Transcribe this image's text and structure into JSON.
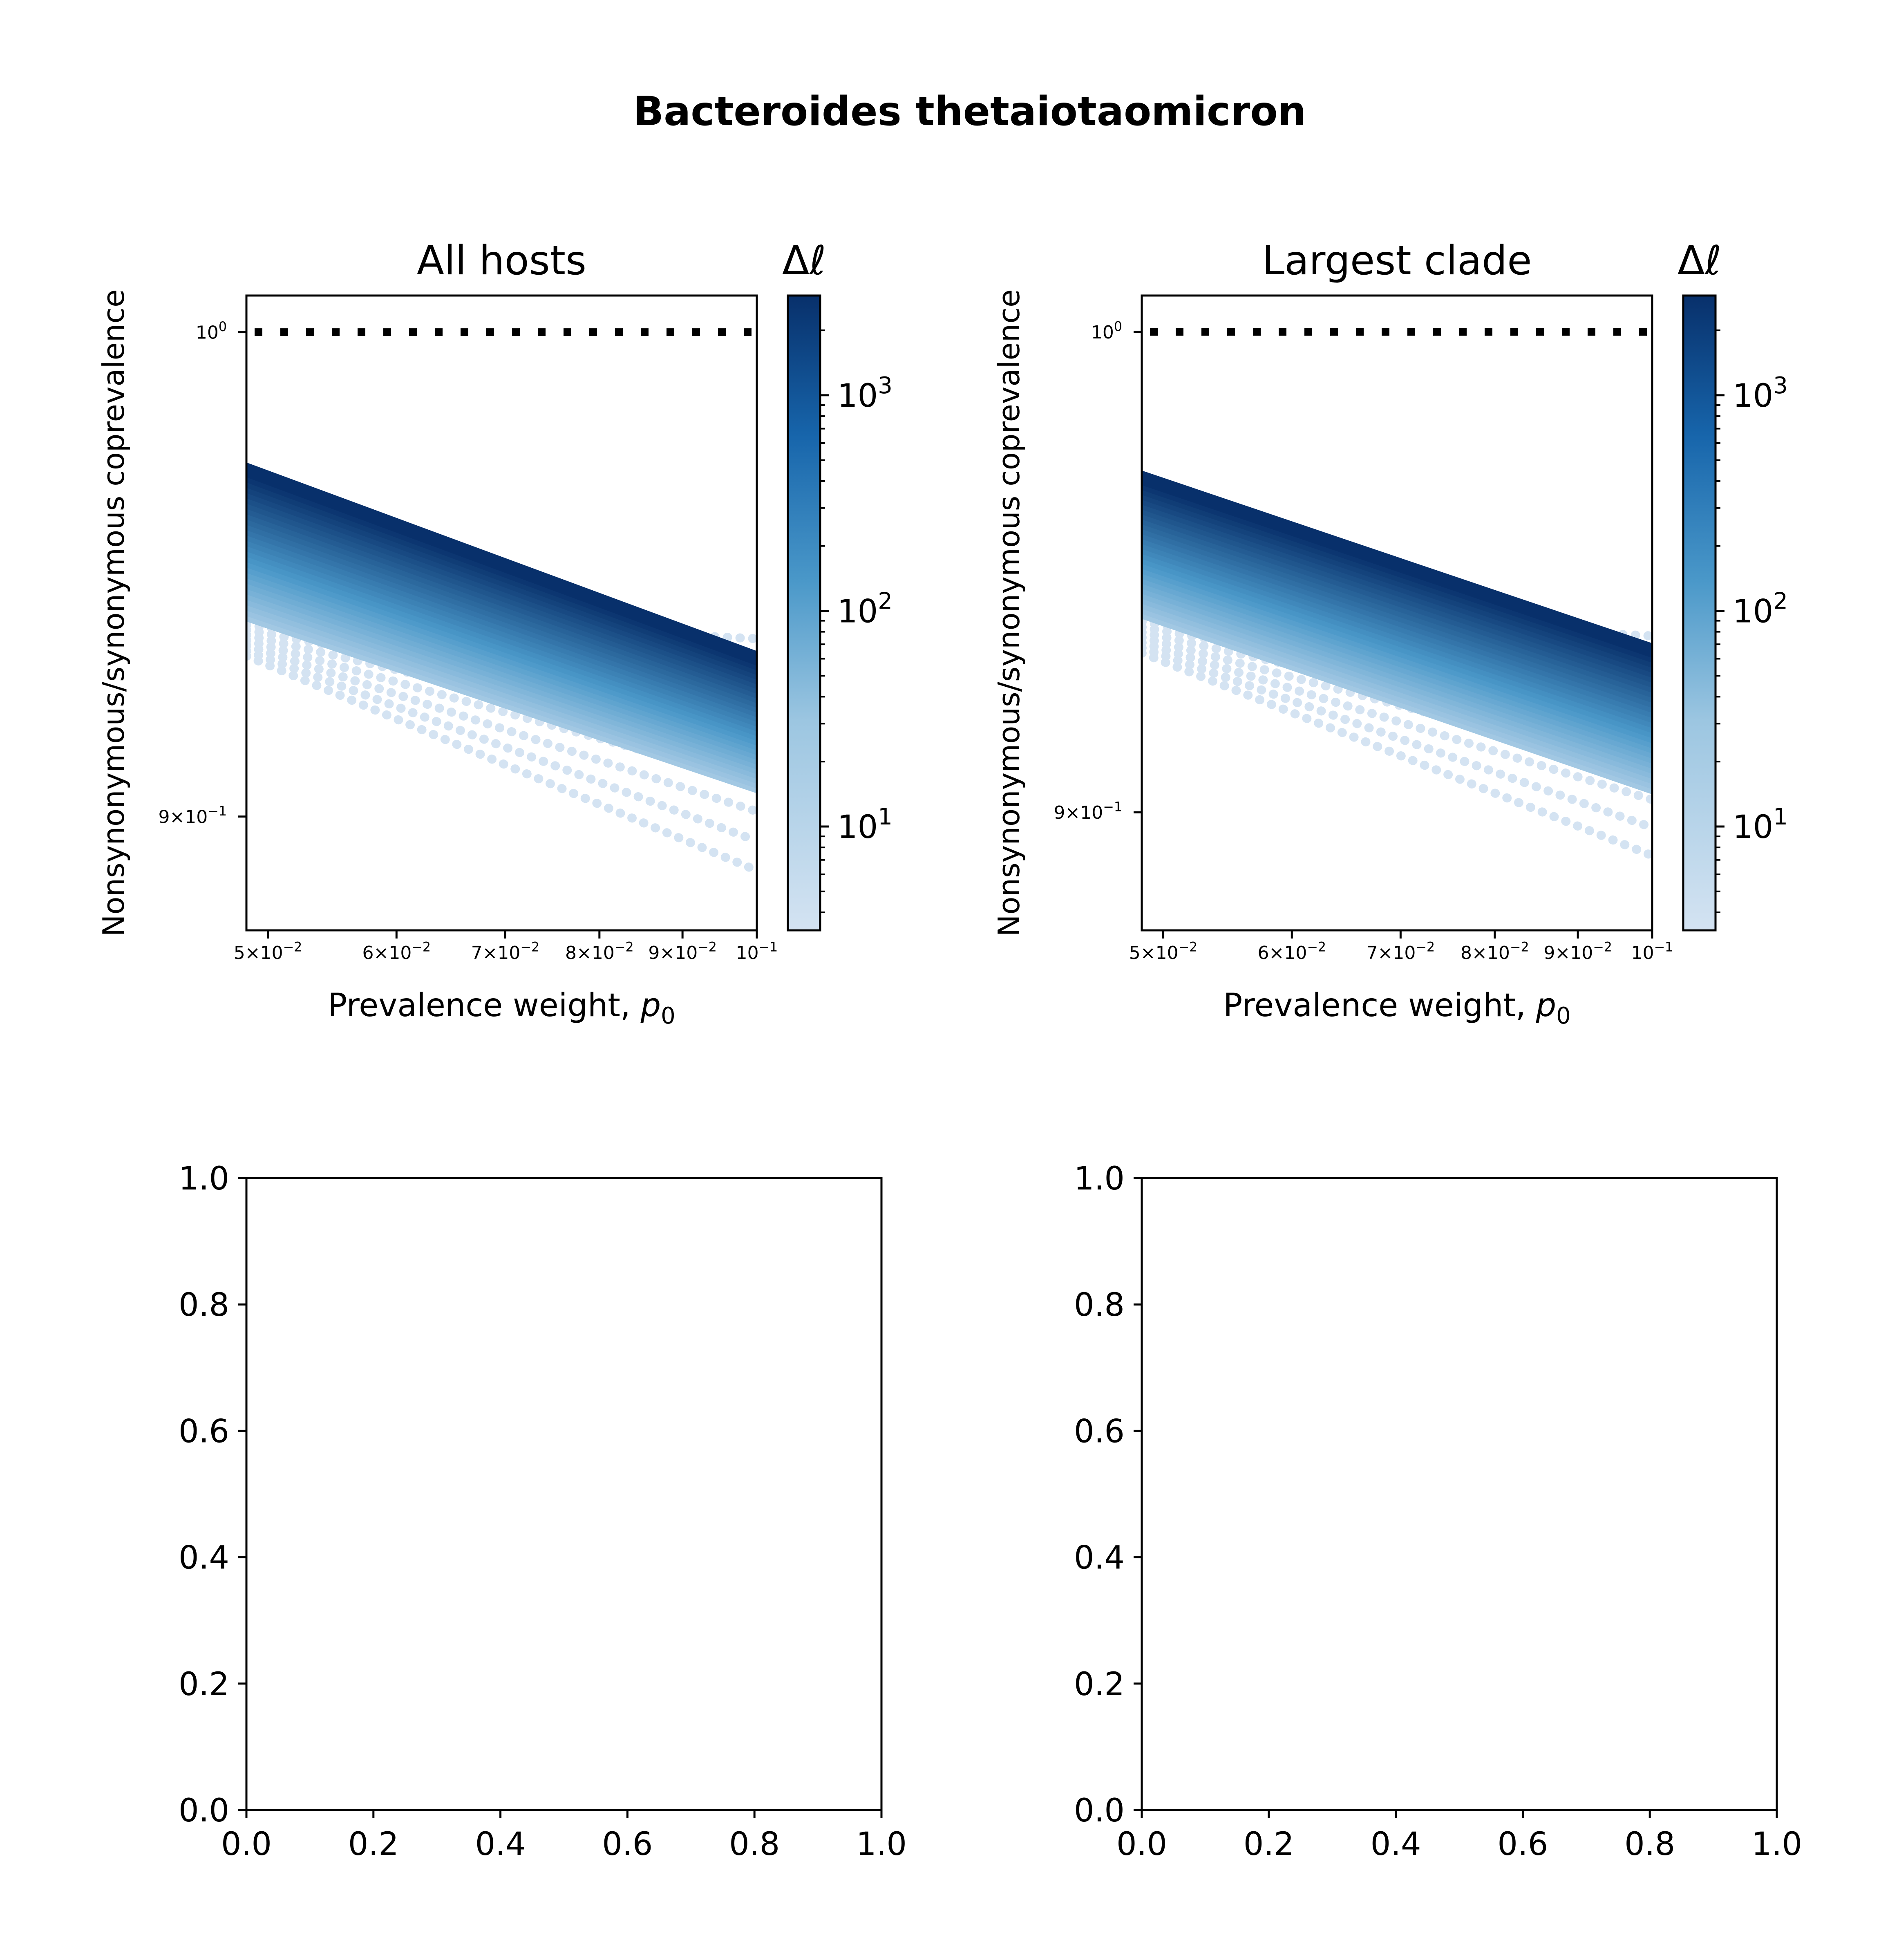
{
  "figure": {
    "suptitle": "Bacteroides thetaiotaomicron"
  },
  "colors": {
    "cmap_low": "#d4e3f2",
    "cmap_mid": "#4a98c9",
    "cmap_high": "#08306b",
    "dotted_line": "#000000",
    "axis": "#000000"
  },
  "chart_data": [
    {
      "type": "line",
      "title": "All hosts",
      "xlabel": "Prevalence weight, ",
      "xlabel_math": "p",
      "xlabel_sub": "0",
      "ylabel": "Nonsynonymous/synonymous coprevalence",
      "xscale": "log",
      "yscale": "log",
      "xlim": [
        0.0485,
        0.1
      ],
      "ylim": [
        0.878,
        1.008
      ],
      "xticks": [
        {
          "value": 0.05,
          "mant": "5×10",
          "exp": "−2"
        },
        {
          "value": 0.06,
          "mant": "6×10",
          "exp": "−2"
        },
        {
          "value": 0.07,
          "mant": "7×10",
          "exp": "−2"
        },
        {
          "value": 0.08,
          "mant": "8×10",
          "exp": "−2"
        },
        {
          "value": 0.09,
          "mant": "9×10",
          "exp": "−2"
        },
        {
          "value": 0.1,
          "mant": "10",
          "exp": "−1"
        }
      ],
      "yticks": [
        {
          "value": 1.0,
          "mant": "10",
          "exp": "0"
        },
        {
          "value": 0.9,
          "mant": "9×10",
          "exp": "−1"
        }
      ],
      "reference_line": {
        "y": 1.0,
        "style": "dotted"
      },
      "colorbar": {
        "label": "Δℓ",
        "scale": "log",
        "range": [
          3.3,
          2900
        ],
        "ticks": [
          {
            "value": 10,
            "mant": "10",
            "exp": "1"
          },
          {
            "value": 100,
            "mant": "10",
            "exp": "2"
          },
          {
            "value": 1000,
            "mant": "10",
            "exp": "3"
          }
        ]
      },
      "series_x": [
        0.0485,
        0.1
      ],
      "series_summary": {
        "upper_start": [
          0.0485,
          0.9705
        ],
        "upper_end": [
          0.1,
          0.9315
        ],
        "lower_start": [
          0.0485,
          0.9405
        ],
        "lower_end": [
          0.1,
          0.906
        ],
        "faint_lower_start": [
          0.0485,
          0.932
        ],
        "faint_lower_end": [
          0.1,
          0.8895
        ],
        "faint_upper_end": [
          0.1,
          0.9355
        ],
        "n_colored_series": 28,
        "n_faint_series": 9
      }
    },
    {
      "type": "line",
      "title": "Largest clade",
      "xlabel": "Prevalence weight, ",
      "xlabel_math": "p",
      "xlabel_sub": "0",
      "ylabel": "Nonsynonymous/synonymous coprevalence",
      "xscale": "log",
      "yscale": "log",
      "xlim": [
        0.0485,
        0.1
      ],
      "ylim": [
        0.877,
        1.008
      ],
      "xticks": [
        {
          "value": 0.05,
          "mant": "5×10",
          "exp": "−2"
        },
        {
          "value": 0.06,
          "mant": "6×10",
          "exp": "−2"
        },
        {
          "value": 0.07,
          "mant": "7×10",
          "exp": "−2"
        },
        {
          "value": 0.08,
          "mant": "8×10",
          "exp": "−2"
        },
        {
          "value": 0.09,
          "mant": "9×10",
          "exp": "−2"
        },
        {
          "value": 0.1,
          "mant": "10",
          "exp": "−1"
        }
      ],
      "yticks": [
        {
          "value": 1.0,
          "mant": "10",
          "exp": "0"
        },
        {
          "value": 0.9,
          "mant": "9×10",
          "exp": "−1"
        }
      ],
      "reference_line": {
        "y": 1.0,
        "style": "dotted"
      },
      "colorbar": {
        "label": "Δℓ",
        "scale": "log",
        "range": [
          3.3,
          2900
        ],
        "ticks": [
          {
            "value": 10,
            "mant": "10",
            "exp": "1"
          },
          {
            "value": 100,
            "mant": "10",
            "exp": "2"
          },
          {
            "value": 1000,
            "mant": "10",
            "exp": "3"
          }
        ]
      },
      "series_x": [
        0.0485,
        0.1
      ],
      "series_summary": {
        "upper_start": [
          0.0485,
          0.9685
        ],
        "upper_end": [
          0.1,
          0.9325
        ],
        "lower_start": [
          0.0485,
          0.9405
        ],
        "lower_end": [
          0.1,
          0.905
        ],
        "faint_lower_start": [
          0.0485,
          0.932
        ],
        "faint_lower_end": [
          0.1,
          0.8915
        ],
        "faint_upper_end": [
          0.1,
          0.9355
        ],
        "n_colored_series": 28,
        "n_faint_series": 9
      }
    },
    {
      "type": "line",
      "title": "",
      "xlim": [
        0,
        1
      ],
      "ylim": [
        0,
        1
      ],
      "xticks": [
        "0.0",
        "0.2",
        "0.4",
        "0.6",
        "0.8",
        "1.0"
      ],
      "yticks": [
        "0.0",
        "0.2",
        "0.4",
        "0.6",
        "0.8",
        "1.0"
      ]
    },
    {
      "type": "line",
      "title": "",
      "xlim": [
        0,
        1
      ],
      "ylim": [
        0,
        1
      ],
      "xticks": [
        "0.0",
        "0.2",
        "0.4",
        "0.6",
        "0.8",
        "1.0"
      ],
      "yticks": [
        "0.0",
        "0.2",
        "0.4",
        "0.6",
        "0.8",
        "1.0"
      ]
    }
  ]
}
